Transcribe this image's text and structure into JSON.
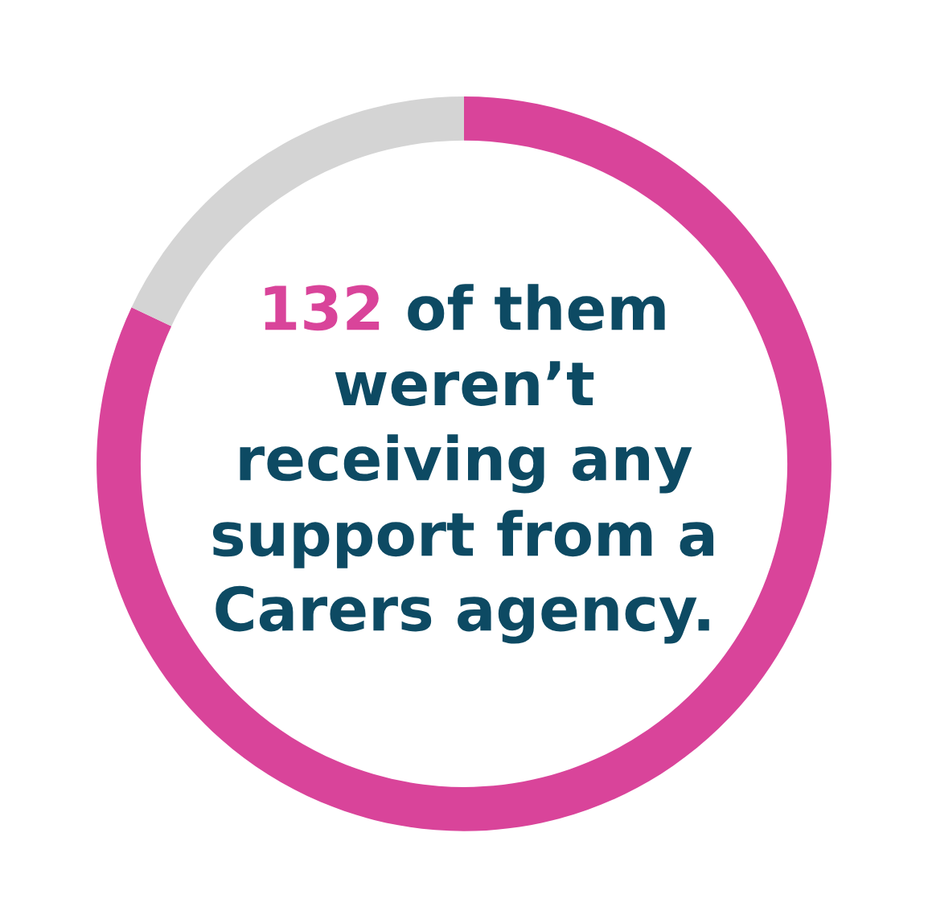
{
  "chart_data": {
    "type": "donut",
    "title": "132 of them\nweren’t\nreceiving any\nsupport from a\nCarers agency.",
    "categories": [
      null,
      null
    ],
    "values": [
      82,
      18
    ],
    "colors": [
      "#d9449a",
      "#d4d4d4"
    ],
    "legend": false
  }
}
